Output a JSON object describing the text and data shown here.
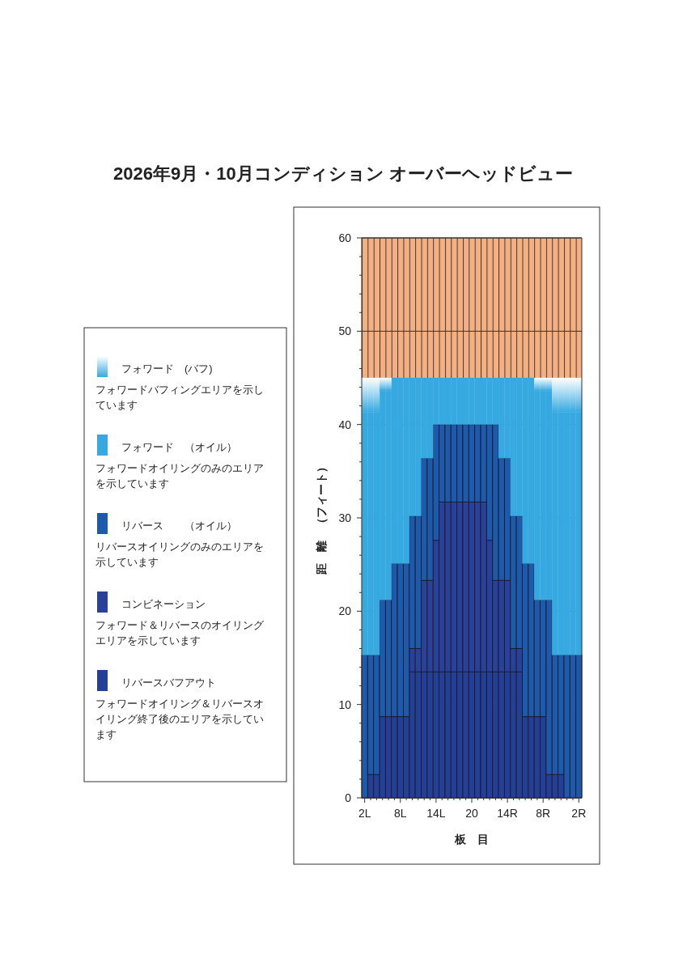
{
  "chart_data": {
    "type": "bar",
    "stacked": true,
    "title": "2026年9月・10月コンディション オーバーヘッドビュー",
    "xlabel": "板　目",
    "ylabel": "距　離　（フィート）",
    "categories": [
      "2L",
      null,
      null,
      null,
      null,
      null,
      "8L",
      null,
      null,
      null,
      null,
      null,
      "14L",
      null,
      null,
      null,
      null,
      null,
      "20",
      null,
      null,
      null,
      null,
      null,
      "14R",
      null,
      null,
      null,
      null,
      null,
      "8R",
      null,
      null,
      null,
      null,
      null,
      "2R"
    ],
    "series": [
      {
        "name": "リバースバフアウト",
        "color": "#243f96",
        "values": [
          0,
          2.5,
          2.5,
          8.7,
          8.7,
          8.7,
          8.7,
          8.7,
          13.5,
          13.5,
          13.5,
          13.5,
          13.5,
          13.5,
          13.5,
          13.5,
          13.5,
          13.5,
          13.5,
          13.5,
          13.5,
          13.5,
          13.5,
          13.5,
          13.5,
          13.5,
          13.5,
          8.7,
          8.7,
          8.7,
          8.7,
          2.5,
          2.5,
          2.5,
          0,
          0,
          0
        ]
      },
      {
        "name": "コンビネーション",
        "color": "#2a4199",
        "values": [
          0,
          0,
          0,
          0,
          0,
          0,
          0,
          0,
          2.5,
          2.5,
          9.8,
          9.8,
          14.1,
          18.2,
          18.2,
          18.2,
          18.2,
          18.2,
          18.2,
          18.2,
          18.2,
          14.1,
          9.8,
          9.8,
          9.8,
          2.5,
          2.5,
          0,
          0,
          0,
          0,
          0,
          0,
          0,
          0,
          0,
          0
        ]
      },
      {
        "name": "リバース　　（オイル）",
        "color": "#1d5aac",
        "values": [
          15.3,
          12.8,
          12.8,
          12.5,
          12.5,
          16.4,
          16.4,
          16.4,
          14.2,
          14.2,
          13.1,
          13.1,
          12.4,
          8.3,
          8.3,
          8.3,
          8.3,
          8.3,
          8.3,
          8.3,
          8.3,
          12.4,
          16.7,
          13.1,
          13.1,
          14.2,
          14.2,
          16.4,
          16.4,
          12.5,
          12.5,
          18.7,
          12.8,
          12.8,
          15.3,
          15.3,
          15.3
        ]
      },
      {
        "name": "フォワード　（オイル）",
        "color": "#36a9e1",
        "values": [
          26.0,
          26.0,
          26.0,
          22.4,
          22.4,
          19.9,
          19.9,
          19.9,
          14.8,
          14.8,
          8.6,
          8.6,
          5.0,
          5.0,
          5.0,
          5.0,
          5.0,
          5.0,
          5.0,
          5.0,
          5.0,
          5.0,
          5.0,
          8.6,
          8.6,
          14.8,
          14.8,
          19.9,
          19.9,
          22.4,
          22.4,
          22.4,
          26.0,
          26.0,
          26.0,
          26.0,
          26.0
        ]
      },
      {
        "name": "フォワード　(バフ)",
        "color": "#ffffff",
        "values": [
          3.7,
          3.7,
          3.7,
          1.4,
          1.4,
          0,
          0,
          0,
          0,
          0,
          0,
          0,
          0,
          0,
          0,
          0,
          0,
          0,
          0,
          0,
          0,
          0,
          0,
          0,
          0,
          0,
          0,
          0,
          0,
          1.4,
          1.4,
          1.4,
          3.7,
          3.7,
          3.7,
          3.7,
          3.7
        ]
      }
    ],
    "ylim": [
      0,
      60
    ],
    "yticks": [
      0,
      10,
      20,
      30,
      40,
      50,
      60
    ],
    "bands": [
      {
        "axis": "y",
        "from": 45,
        "to": 60,
        "color": "#f2b184"
      }
    ],
    "grid": "y",
    "legend": "left",
    "annotations": [
      "フォワードバフィングエリアを示しています",
      "フォワードオイリングのみのエリアを示しています",
      "リバースオイリングのみのエリアを示しています",
      "フォワード＆リバースのオイリングエリアを示しています",
      "フォワードオイリング＆リバースオイリング終了後のエリアを示しています"
    ]
  }
}
